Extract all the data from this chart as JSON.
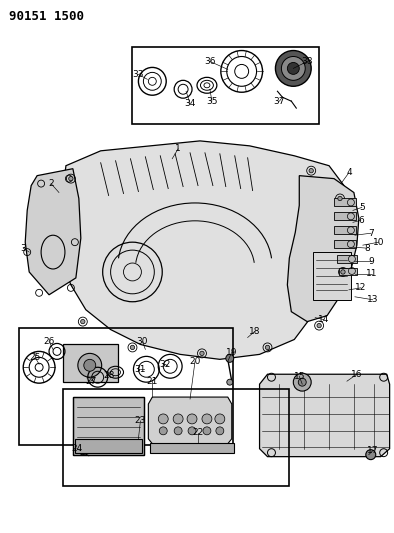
{
  "title_code": "90151 1500",
  "bg_color": "#ffffff",
  "line_color": "#000000",
  "title_fontsize": 9,
  "label_fontsize": 6.5
}
